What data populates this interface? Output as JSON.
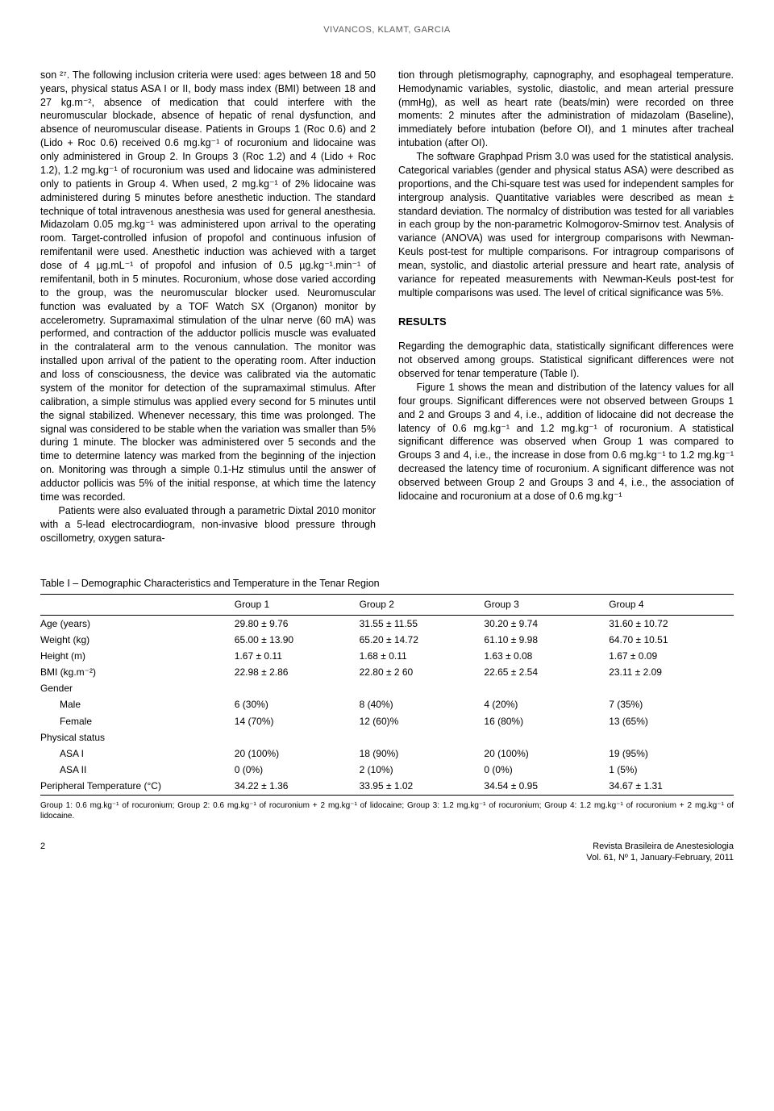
{
  "header_authors": "VIVANCOS, KLAMT, GARCIA",
  "left_col": {
    "p1": "son ²⁷. The following inclusion criteria were used: ages between 18 and 50 years, physical status ASA I or II, body mass index (BMI) between 18 and 27 kg.m⁻², absence of medication that could interfere with the neuromuscular blockade, absence of hepatic of renal dysfunction, and absence of neuromuscular disease. Patients in Groups 1 (Roc 0.6) and 2 (Lido + Roc 0.6) received 0.6 mg.kg⁻¹ of rocuronium and lidocaine was only administered in Group 2. In Groups 3 (Roc 1.2) and 4 (Lido + Roc 1.2), 1.2 mg.kg⁻¹ of rocuronium was used and lidocaine was administered only to patients in Group 4. When used, 2 mg.kg⁻¹ of 2% lidocaine was administered during 5 minutes before anesthetic induction. The standard technique of total intravenous anesthesia was used for general anesthesia. Midazolam 0.05 mg.kg⁻¹ was administered upon arrival to the operating room. Target-controlled infusion of propofol and continuous infusion of remifentanil were used. Anesthetic induction was achieved with a target dose of 4 µg.mL⁻¹ of propofol and infusion of 0.5 µg.kg⁻¹.min⁻¹ of remifentanil, both in 5 minutes. Rocuronium, whose dose varied according to the group, was the neuromuscular blocker used. Neuromuscular function was evaluated by a TOF Watch SX (Organon) monitor by accelerometry. Supramaximal stimulation of the ulnar nerve (60 mA) was performed, and contraction of the adductor pollicis muscle was evaluated in the contralateral arm to the venous cannulation. The monitor was installed upon arrival of the patient to the operating room. After induction and loss of consciousness, the device was calibrated via the automatic system of the monitor for detection of the supramaximal stimulus. After calibration, a simple stimulus was applied every second for 5 minutes until the signal stabilized. Whenever necessary, this time was prolonged. The signal was considered to be stable when the variation was smaller than 5% during 1 minute. The blocker was administered over 5 seconds and the time to determine latency was marked from the beginning of the injection on. Monitoring was through a simple 0.1-Hz stimulus until the answer of adductor pollicis was 5% of the initial response, at which time the latency time was recorded.",
    "p2": "Patients were also evaluated through a parametric Dixtal 2010 monitor with a 5-lead electrocardiogram, non-invasive blood pressure through oscillometry, oxygen satura-"
  },
  "right_col": {
    "p1": "tion through pletismography, capnography, and esophageal temperature. Hemodynamic variables, systolic, diastolic, and mean arterial pressure (mmHg), as well as heart rate (beats/min) were recorded on three moments: 2 minutes after the administration of midazolam (Baseline), immediately before intubation (before OI), and 1 minutes after tracheal intubation (after OI).",
    "p2": "The software Graphpad Prism 3.0 was used for the statistical analysis. Categorical variables (gender and physical status ASA) were described as proportions, and the Chi-square test was used for independent samples for intergroup analysis. Quantitative variables were described as mean ± standard deviation. The normalcy of distribution was tested for all variables in each group by the non-parametric Kolmogorov-Smirnov test. Analysis of variance (ANOVA) was used for intergroup comparisons with Newman-Keuls post-test for multiple comparisons. For intragroup comparisons of mean, systolic, and diastolic arterial pressure and heart rate, analysis of variance for repeated measurements with Newman-Keuls post-test for multiple comparisons was used. The level of critical significance was 5%.",
    "results_head": "RESULTS",
    "p3": "Regarding the demographic data, statistically significant differences were not observed among groups. Statistical significant differences were not observed for tenar temperature (Table I).",
    "p4": "Figure 1 shows the mean and distribution of the latency values for all four groups. Significant differences were not observed between Groups 1 and 2 and Groups 3 and 4, i.e., addition of lidocaine did not decrease the latency of 0.6 mg.kg⁻¹ and 1.2 mg.kg⁻¹ of rocuronium. A statistical significant difference was observed when Group 1 was compared to Groups 3 and 4, i.e., the increase in dose from 0.6 mg.kg⁻¹ to 1.2 mg.kg⁻¹ decreased the latency time of rocuronium. A significant difference was not observed between Group 2 and Groups 3 and 4, i.e., the association of lidocaine and rocuronium at a dose of 0.6 mg.kg⁻¹"
  },
  "table": {
    "title": "Table I – Demographic Characteristics and Temperature in the Tenar Region",
    "columns": [
      "",
      "Group 1",
      "Group 2",
      "Group 3",
      "Group 4"
    ],
    "rows": [
      {
        "label": "Age (years)",
        "c": [
          "29.80 ± 9.76",
          "31.55 ± 11.55",
          "30.20 ± 9.74",
          "31.60 ± 10.72"
        ]
      },
      {
        "label": "Weight (kg)",
        "c": [
          "65.00 ± 13.90",
          "65.20 ± 14.72",
          "61.10 ± 9.98",
          "64.70 ± 10.51"
        ]
      },
      {
        "label": "Height (m)",
        "c": [
          "1.67 ± 0.11",
          "1.68 ± 0.11",
          "1.63 ± 0.08",
          "1.67 ± 0.09"
        ]
      },
      {
        "label": "BMI (kg.m⁻²)",
        "c": [
          "22.98 ± 2.86",
          "22.80 ± 2 60",
          "22.65 ± 2.54",
          "23.11 ± 2.09"
        ]
      },
      {
        "label": "Gender",
        "c": [
          "",
          "",
          "",
          ""
        ]
      },
      {
        "label": "Male",
        "sub": true,
        "c": [
          "6 (30%)",
          "8 (40%)",
          "4 (20%)",
          "7 (35%)"
        ]
      },
      {
        "label": "Female",
        "sub": true,
        "c": [
          "14 (70%)",
          "12 (60)%",
          "16 (80%)",
          "13 (65%)"
        ]
      },
      {
        "label": "Physical status",
        "c": [
          "",
          "",
          "",
          ""
        ]
      },
      {
        "label": "ASA I",
        "sub": true,
        "c": [
          "20 (100%)",
          "18 (90%)",
          "20 (100%)",
          "19 (95%)"
        ]
      },
      {
        "label": "ASA II",
        "sub": true,
        "c": [
          "0 (0%)",
          "2 (10%)",
          "0 (0%)",
          "1 (5%)"
        ]
      },
      {
        "label": "Peripheral Temperature (°C)",
        "c": [
          "34.22 ± 1.36",
          "33.95 ± 1.02",
          "34.54 ± 0.95",
          "34.67 ± 1.31"
        ]
      }
    ],
    "note": "Group 1: 0.6 mg.kg⁻¹ of rocuronium; Group 2: 0.6 mg.kg⁻¹ of rocuronium + 2 mg.kg⁻¹ of lidocaine; Group 3: 1.2 mg.kg⁻¹ of rocuronium; Group 4: 1.2 mg.kg⁻¹ of rocuronium + 2 mg.kg⁻¹ of lidocaine.",
    "col_widths": [
      "28%",
      "18%",
      "18%",
      "18%",
      "18%"
    ]
  },
  "footer": {
    "page": "2",
    "journal": "Revista Brasileira de Anestesiologia",
    "issue": "Vol. 61, Nº 1, January-February, 2011"
  },
  "colors": {
    "text": "#000000",
    "header_gray": "#5a5a5a",
    "background": "#ffffff",
    "rule": "#000000"
  }
}
